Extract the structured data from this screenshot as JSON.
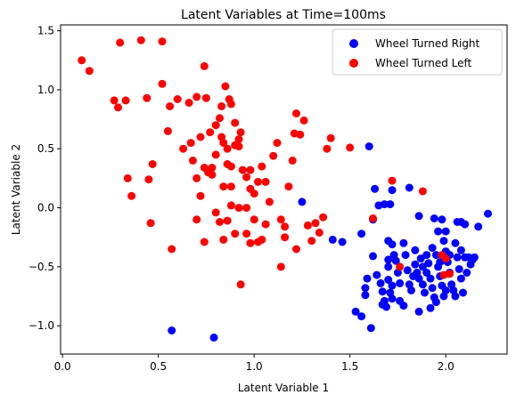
{
  "chart_data": {
    "type": "scatter",
    "title": "Latent Variables at Time=100ms",
    "xlabel": "Latent Variable 1",
    "ylabel": "Latent Variable 2",
    "xlim": [
      -0.01,
      2.32
    ],
    "ylim": [
      -1.24,
      1.55
    ],
    "xticks": [
      0.0,
      0.5,
      1.0,
      1.5,
      2.0
    ],
    "xtick_labels": [
      "0.0",
      "0.5",
      "1.0",
      "1.5",
      "2.0"
    ],
    "yticks": [
      -1.0,
      -0.5,
      0.0,
      0.5,
      1.0,
      1.5
    ],
    "yticks_labels": [
      "−1.0",
      "−0.5",
      "0.0",
      "0.5",
      "1.0",
      "1.5"
    ],
    "grid": false,
    "legend_position": "top-right",
    "series": [
      {
        "name": "Wheel Turned Right",
        "color": "#0000ff",
        "points": [
          [
            0.57,
            -1.04
          ],
          [
            0.79,
            -1.1
          ],
          [
            1.25,
            0.05
          ],
          [
            1.6,
            0.52
          ],
          [
            1.41,
            -0.27
          ],
          [
            1.46,
            -0.29
          ],
          [
            1.56,
            -0.22
          ],
          [
            1.63,
            0.16
          ],
          [
            1.65,
            0.02
          ],
          [
            1.68,
            0.03
          ],
          [
            1.71,
            0.03
          ],
          [
            1.72,
            0.15
          ],
          [
            1.62,
            -0.1
          ],
          [
            1.81,
            0.17
          ],
          [
            1.86,
            -0.07
          ],
          [
            1.94,
            -0.09
          ],
          [
            1.98,
            -0.1
          ],
          [
            1.96,
            -0.2
          ],
          [
            2.0,
            -0.2
          ],
          [
            2.06,
            -0.12
          ],
          [
            2.08,
            -0.12
          ],
          [
            2.1,
            -0.14
          ],
          [
            2.17,
            -0.16
          ],
          [
            2.22,
            -0.05
          ],
          [
            1.53,
            -0.88
          ],
          [
            1.56,
            -0.92
          ],
          [
            1.61,
            -1.02
          ],
          [
            1.58,
            -0.74
          ],
          [
            1.58,
            -0.68
          ],
          [
            1.59,
            -0.6
          ],
          [
            1.62,
            -0.41
          ],
          [
            1.64,
            -0.57
          ],
          [
            1.66,
            -0.64
          ],
          [
            1.67,
            -0.71
          ],
          [
            1.67,
            -0.82
          ],
          [
            1.68,
            -0.79
          ],
          [
            1.69,
            -0.84
          ],
          [
            1.7,
            -0.44
          ],
          [
            1.7,
            -0.5
          ],
          [
            1.7,
            -0.61
          ],
          [
            1.71,
            -0.72
          ],
          [
            1.72,
            -0.77
          ],
          [
            1.7,
            -0.28
          ],
          [
            1.72,
            -0.31
          ],
          [
            1.73,
            -0.4
          ],
          [
            1.74,
            -0.45
          ],
          [
            1.75,
            -0.55
          ],
          [
            1.76,
            -0.64
          ],
          [
            1.78,
            -0.3
          ],
          [
            1.79,
            -0.4
          ],
          [
            1.8,
            -0.53
          ],
          [
            1.81,
            -0.65
          ],
          [
            1.82,
            -0.7
          ],
          [
            1.83,
            -0.58
          ],
          [
            1.84,
            -0.48
          ],
          [
            1.85,
            -0.55
          ],
          [
            1.86,
            -0.6
          ],
          [
            1.87,
            -0.43
          ],
          [
            1.88,
            -0.5
          ],
          [
            1.88,
            -0.65
          ],
          [
            1.89,
            -0.72
          ],
          [
            1.9,
            -0.55
          ],
          [
            1.91,
            -0.47
          ],
          [
            1.92,
            -0.6
          ],
          [
            1.93,
            -0.68
          ],
          [
            1.94,
            -0.76
          ],
          [
            1.95,
            -0.8
          ],
          [
            1.93,
            -0.34
          ],
          [
            1.95,
            -0.4
          ],
          [
            1.96,
            -0.5
          ],
          [
            1.97,
            -0.58
          ],
          [
            1.98,
            -0.66
          ],
          [
            1.99,
            -0.28
          ],
          [
            2.0,
            -0.37
          ],
          [
            2.01,
            -0.46
          ],
          [
            2.02,
            -0.55
          ],
          [
            2.03,
            -0.65
          ],
          [
            2.04,
            -0.7
          ],
          [
            2.05,
            -0.3
          ],
          [
            2.06,
            -0.42
          ],
          [
            2.07,
            -0.52
          ],
          [
            2.08,
            -0.6
          ],
          [
            2.09,
            -0.72
          ],
          [
            2.1,
            -0.42
          ],
          [
            2.11,
            -0.55
          ],
          [
            2.12,
            -0.42
          ],
          [
            2.13,
            -0.48
          ],
          [
            2.14,
            -0.44
          ],
          [
            2.15,
            -0.42
          ],
          [
            2.05,
            -0.75
          ],
          [
            1.76,
            -0.79
          ],
          [
            1.78,
            -0.83
          ],
          [
            1.72,
            -0.66
          ],
          [
            1.84,
            -0.36
          ],
          [
            1.9,
            -0.4
          ],
          [
            1.97,
            -0.46
          ],
          [
            2.02,
            -0.4
          ],
          [
            2.08,
            -0.36
          ],
          [
            1.99,
            -0.75
          ],
          [
            1.86,
            -0.88
          ],
          [
            1.92,
            -0.85
          ],
          [
            2.0,
            -0.7
          ]
        ]
      },
      {
        "name": "Wheel Turned Left",
        "color": "#ff0000",
        "points": [
          [
            0.1,
            1.25
          ],
          [
            0.14,
            1.16
          ],
          [
            0.3,
            1.4
          ],
          [
            0.41,
            1.42
          ],
          [
            0.52,
            1.41
          ],
          [
            0.27,
            0.91
          ],
          [
            0.29,
            0.85
          ],
          [
            0.33,
            0.91
          ],
          [
            0.44,
            0.93
          ],
          [
            0.52,
            1.05
          ],
          [
            0.56,
            0.86
          ],
          [
            0.6,
            0.92
          ],
          [
            0.66,
            0.89
          ],
          [
            0.7,
            0.94
          ],
          [
            0.74,
            1.2
          ],
          [
            0.75,
            0.93
          ],
          [
            0.77,
            0.64
          ],
          [
            0.8,
            0.7
          ],
          [
            0.82,
            0.76
          ],
          [
            0.83,
            0.86
          ],
          [
            0.85,
            1.03
          ],
          [
            0.87,
            0.92
          ],
          [
            0.88,
            0.88
          ],
          [
            0.9,
            0.72
          ],
          [
            0.92,
            0.58
          ],
          [
            0.93,
            0.64
          ],
          [
            0.55,
            0.65
          ],
          [
            0.63,
            0.5
          ],
          [
            0.67,
            0.55
          ],
          [
            0.68,
            0.4
          ],
          [
            0.72,
            0.6
          ],
          [
            0.74,
            0.34
          ],
          [
            0.76,
            0.3
          ],
          [
            0.78,
            0.34
          ],
          [
            0.8,
            0.45
          ],
          [
            0.83,
            0.6
          ],
          [
            0.84,
            0.55
          ],
          [
            0.86,
            0.5
          ],
          [
            0.88,
            0.35
          ],
          [
            0.9,
            0.53
          ],
          [
            0.92,
            0.52
          ],
          [
            0.94,
            0.32
          ],
          [
            0.96,
            0.26
          ],
          [
            0.98,
            0.16
          ],
          [
            1.0,
            0.12
          ],
          [
            1.02,
            0.22
          ],
          [
            1.04,
            0.35
          ],
          [
            1.06,
            0.22
          ],
          [
            1.08,
            0.05
          ],
          [
            1.1,
            0.44
          ],
          [
            1.12,
            0.55
          ],
          [
            1.14,
            -0.1
          ],
          [
            1.16,
            -0.16
          ],
          [
            1.18,
            0.18
          ],
          [
            1.2,
            0.4
          ],
          [
            1.21,
            0.63
          ],
          [
            1.22,
            0.8
          ],
          [
            1.24,
            0.62
          ],
          [
            1.26,
            0.74
          ],
          [
            1.28,
            -0.15
          ],
          [
            1.3,
            -0.28
          ],
          [
            1.32,
            -0.13
          ],
          [
            1.34,
            -0.21
          ],
          [
            1.36,
            -0.08
          ],
          [
            1.38,
            0.5
          ],
          [
            1.4,
            0.59
          ],
          [
            1.5,
            0.51
          ],
          [
            1.72,
            0.23
          ],
          [
            1.62,
            -0.09
          ],
          [
            1.88,
            0.14
          ],
          [
            0.34,
            0.25
          ],
          [
            0.36,
            0.1
          ],
          [
            0.45,
            0.24
          ],
          [
            0.47,
            0.37
          ],
          [
            0.46,
            -0.13
          ],
          [
            0.57,
            -0.35
          ],
          [
            0.7,
            -0.1
          ],
          [
            0.72,
            0.1
          ],
          [
            0.74,
            -0.29
          ],
          [
            0.8,
            -0.04
          ],
          [
            0.82,
            -0.12
          ],
          [
            0.86,
            -0.11
          ],
          [
            0.88,
            0.02
          ],
          [
            0.9,
            -0.22
          ],
          [
            0.93,
            -0.65
          ],
          [
            0.96,
            -0.22
          ],
          [
            0.98,
            -0.3
          ],
          [
            1.0,
            -0.1
          ],
          [
            1.02,
            -0.29
          ],
          [
            1.04,
            -0.27
          ],
          [
            1.06,
            -0.14
          ],
          [
            1.14,
            -0.5
          ],
          [
            1.16,
            -0.25
          ],
          [
            1.22,
            -0.35
          ],
          [
            0.7,
            0.25
          ],
          [
            0.84,
            0.18
          ],
          [
            0.88,
            0.18
          ],
          [
            0.92,
            0.0
          ],
          [
            0.96,
            0.0
          ],
          [
            0.84,
            -0.27
          ],
          [
            1.76,
            -0.5
          ],
          [
            1.98,
            -0.4
          ],
          [
            2.0,
            -0.43
          ],
          [
            1.99,
            -0.57
          ],
          [
            2.02,
            -0.56
          ],
          [
            0.78,
            0.28
          ],
          [
            0.86,
            0.37
          ],
          [
            0.98,
            0.32
          ]
        ]
      }
    ]
  }
}
